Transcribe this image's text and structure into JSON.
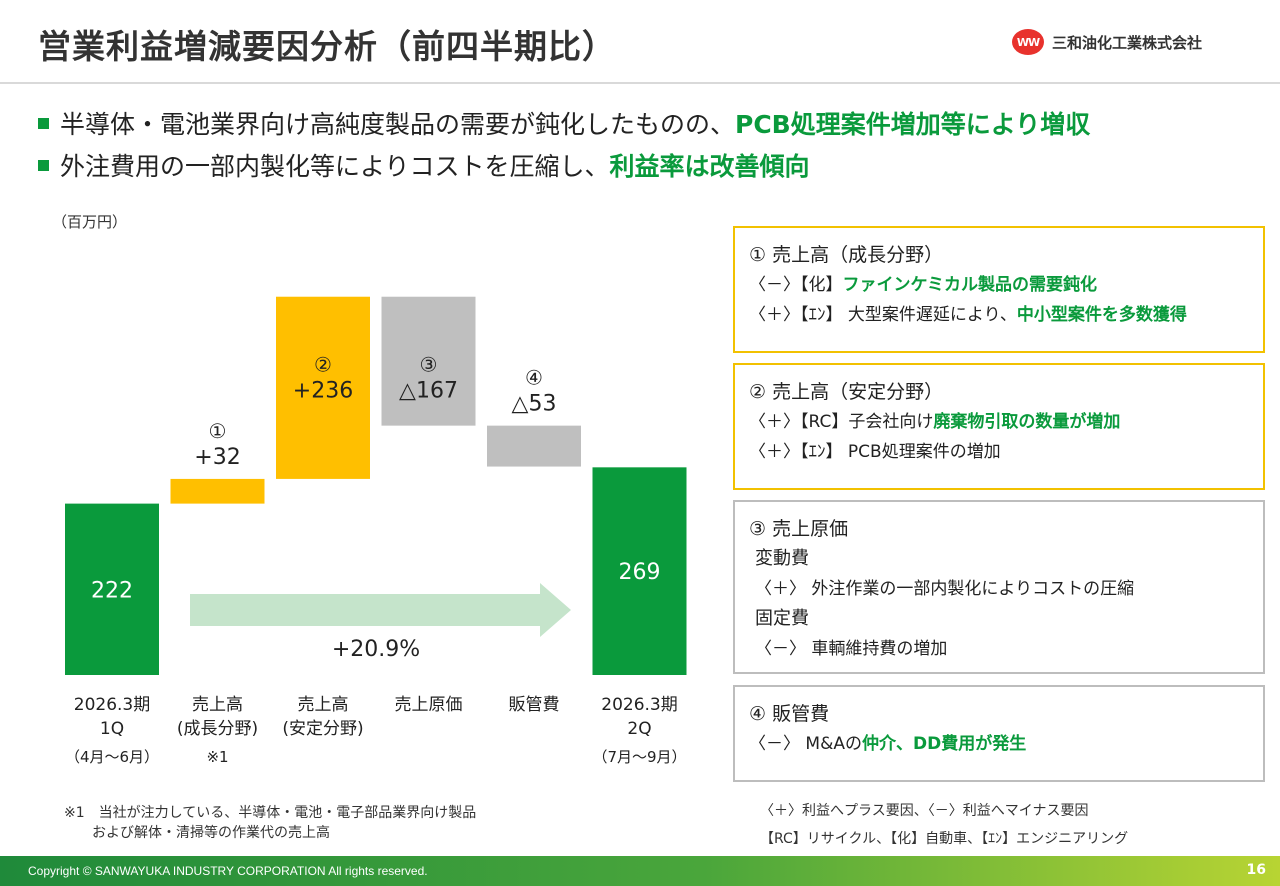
{
  "header": {
    "title": "営業利益増減要因分析（前四半期比）",
    "logo_mark": "WW",
    "company": "三和油化工業株式会社"
  },
  "bullets": [
    {
      "text": "半導体・電池業界向け高純度製品の需要が鈍化したものの、",
      "highlight": "PCB処理案件増加等により増収"
    },
    {
      "text": "外注費用の一部内製化等によりコストを圧縮し、",
      "highlight": "利益率は改善傾向"
    }
  ],
  "chart_data": {
    "type": "waterfall",
    "unit": "（百万円）",
    "bars": [
      {
        "category_lines": [
          "2026.3期",
          "1Q"
        ],
        "period": "（4月～6月）",
        "kind": "total",
        "value": 222,
        "label": "222",
        "color": "#0a9a3c"
      },
      {
        "category_lines": [
          "売上高",
          "(成長分野)"
        ],
        "period": "※1",
        "kind": "delta",
        "value": 32,
        "marker": "①",
        "label": "+32",
        "color": "#ffbf00"
      },
      {
        "category_lines": [
          "売上高",
          "(安定分野)"
        ],
        "period": "",
        "kind": "delta",
        "value": 236,
        "marker": "②",
        "label": "+236",
        "color": "#ffbf00"
      },
      {
        "category_lines": [
          "売上原価"
        ],
        "period": "",
        "kind": "delta",
        "value": -167,
        "marker": "③",
        "label": "△167",
        "color": "#bfbfbf"
      },
      {
        "category_lines": [
          "販管費"
        ],
        "period": "",
        "kind": "delta",
        "value": -53,
        "marker": "④",
        "label": "△53",
        "color": "#bfbfbf"
      },
      {
        "category_lines": [
          "2026.3期",
          "2Q"
        ],
        "period": "（7月～9月）",
        "kind": "total",
        "value": 269,
        "label": "269",
        "color": "#0a9a3c"
      }
    ],
    "growth_label": "+20.9%",
    "arrow_color": "#c5e4cb"
  },
  "note": {
    "line1": "※1　当社が注力している、半導体・電池・電子部品業界向け製品",
    "line2": "および解体・清掃等の作業代の売上高"
  },
  "factors": [
    {
      "heading": "① 売上高（成長分野）",
      "lines": [
        {
          "plain": "〈－〉【化】",
          "highlight": "ファインケミカル製品の需要鈍化"
        },
        {
          "plain": "〈＋〉【ｴﾝ】 大型案件遅延により、",
          "highlight": "中小型案件を多数獲得"
        }
      ]
    },
    {
      "heading": "② 売上高（安定分野）",
      "lines": [
        {
          "plain": "〈＋〉【RC】子会社向け",
          "highlight": "廃棄物引取の数量が増加"
        },
        {
          "plain": "〈＋〉【ｴﾝ】 PCB処理案件の増加",
          "highlight": ""
        }
      ]
    },
    {
      "heading": "③ 売上原価",
      "sub1": "変動費",
      "line1": "〈＋〉 外注作業の一部内製化によりコストの圧縮",
      "sub2": "固定費",
      "line2": "〈－〉 車輌維持費の増加"
    },
    {
      "heading": "④ 販管費",
      "lines": [
        {
          "plain": "〈－〉 M&Aの",
          "highlight": "仲介、DD費用が発生"
        }
      ]
    }
  ],
  "legend": {
    "line1": "〈＋〉利益へプラス要因、〈－〉利益へマイナス要因",
    "line2": "【RC】リサイクル、【化】自動車、【ｴﾝ】エンジニアリング"
  },
  "footer": {
    "copyright": "Copyright © SANWAYUKA INDUSTRY CORPORATION All rights reserved.",
    "page": "16"
  }
}
